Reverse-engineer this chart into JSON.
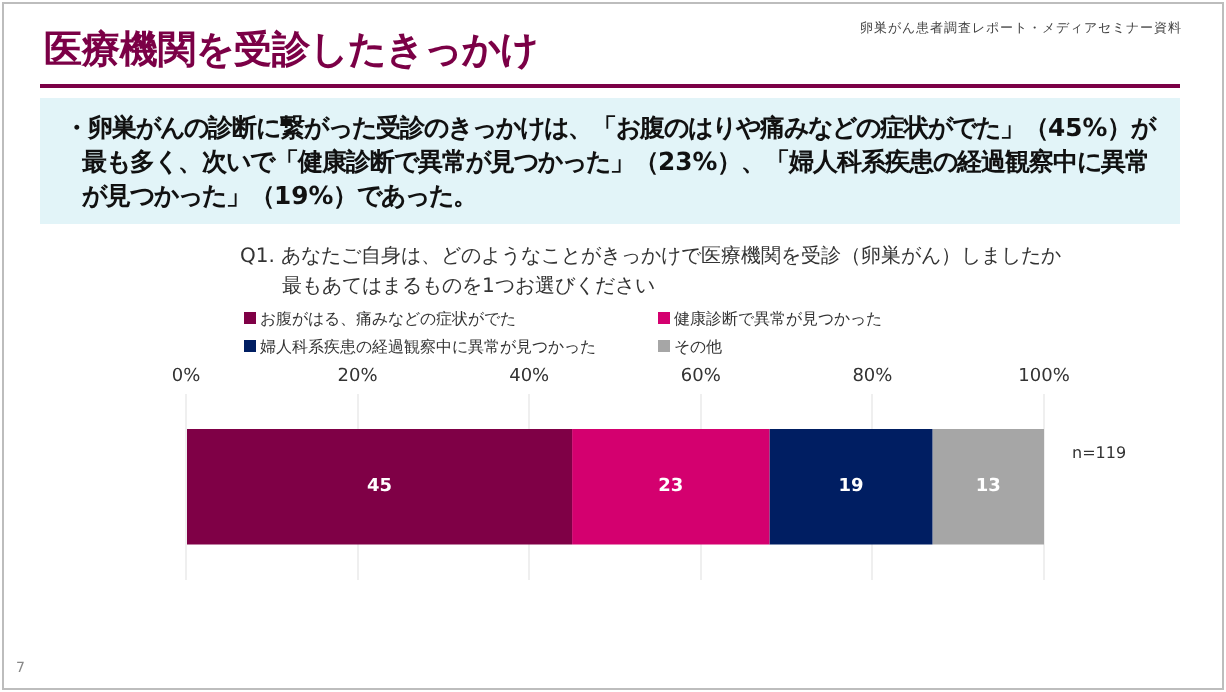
{
  "chart_data": {
    "type": "bar",
    "orientation": "horizontal",
    "stacked": true,
    "title": "医療機関を受診したきっかけ",
    "subtitle": "Q1. あなたご自身は、どのようなことがきっかけで医療機関を受診（卵巣がん）しましたか",
    "categories": [
      null
    ],
    "series": [
      {
        "name": "お腹がはる、痛みなどの症状がでた",
        "color": "#7f0046",
        "values": [
          45
        ]
      },
      {
        "name": "健康診断で異常が見つかった",
        "color": "#d4006f",
        "values": [
          23
        ]
      },
      {
        "name": "婦人科系疾患の経過観察中に異常が見つかった",
        "color": "#001e62",
        "values": [
          19
        ]
      },
      {
        "name": "その他",
        "color": "#a6a6a6",
        "values": [
          13
        ]
      }
    ],
    "xlim": [
      0,
      100
    ],
    "xticks": [
      {
        "value": 0,
        "label": "0%"
      },
      {
        "value": 20,
        "label": "20%"
      },
      {
        "value": 40,
        "label": "40%"
      },
      {
        "value": 60,
        "label": "60%"
      },
      {
        "value": 80,
        "label": "80%"
      },
      {
        "value": 100,
        "label": "100%"
      }
    ],
    "grid": "x",
    "legend": "top",
    "data_labels": true,
    "annotations": [
      "卵巣がん患者調査レポート・メディアセミナー資料",
      "・卵巣がんの診断に繋がった受診のきっかけは、「お腹のはりや痛みなどの症状がでた」（45%）が最も多く、次いで「健康診断で異常が見つかった」（23%）、「婦人科系疾患の経過観察中に異常が見つかった」（19%）であった。",
      "n=119",
      "7",
      "最もあてはまるものを1つお選びください"
    ]
  }
}
